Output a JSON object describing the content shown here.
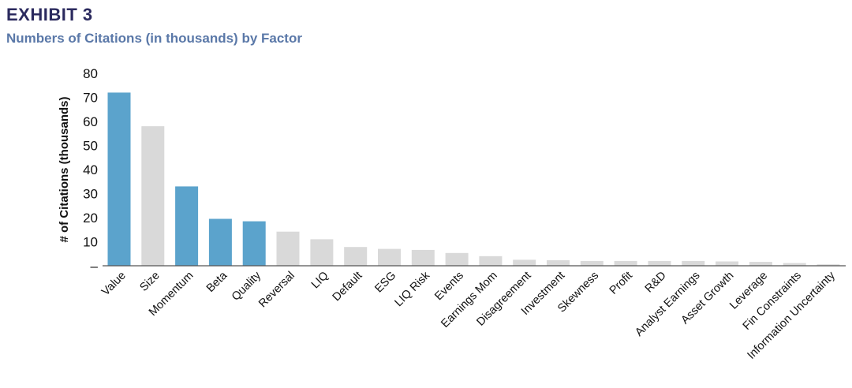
{
  "header": {
    "exhibit": "EXHIBIT 3",
    "subtitle": "Numbers of Citations (in thousands) by Factor"
  },
  "colors": {
    "highlight": "#5ba3cc",
    "base": "#d9d9d9",
    "axis": "#555555"
  },
  "chart_data": {
    "type": "bar",
    "title": "Numbers of Citations (in thousands) by Factor",
    "xlabel": "",
    "ylabel": "# of Citations (thousands)",
    "ylim": [
      0,
      80
    ],
    "yticks": [
      "–",
      "10",
      "20",
      "30",
      "40",
      "50",
      "60",
      "70",
      "80"
    ],
    "grid": false,
    "categories": [
      "Value",
      "Size",
      "Momentum",
      "Beta",
      "Quality",
      "Reversal",
      "LIQ",
      "Default",
      "ESG",
      "LIQ Risk",
      "Events",
      "Earnings Mom",
      "Disagreement",
      "Investment",
      "Skewness",
      "Profit",
      "R&D",
      "Analyst Earnings",
      "Asset Growth",
      "Leverage",
      "Fin Constraints",
      "Information Uncertainty"
    ],
    "values": [
      72,
      58,
      33,
      19.5,
      18.5,
      14.2,
      11,
      7.8,
      7,
      6.6,
      5.3,
      4,
      2.5,
      2.3,
      2,
      2,
      2,
      2,
      1.8,
      1.6,
      1.1,
      0.6
    ],
    "highlighted": [
      true,
      false,
      true,
      true,
      true,
      false,
      false,
      false,
      false,
      false,
      false,
      false,
      false,
      false,
      false,
      false,
      false,
      false,
      false,
      false,
      false,
      false
    ]
  }
}
